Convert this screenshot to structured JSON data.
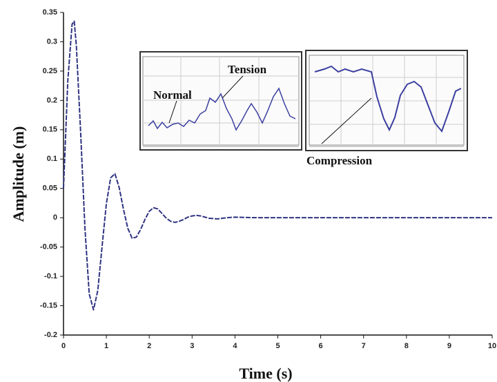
{
  "chart_data": {
    "type": "line",
    "x_label": "Time (s)",
    "y_label": "Amplitude (m)",
    "x": [
      0,
      0.1,
      0.2,
      0.25,
      0.3,
      0.4,
      0.5,
      0.6,
      0.7,
      0.8,
      0.9,
      1.0,
      1.1,
      1.2,
      1.3,
      1.4,
      1.5,
      1.6,
      1.7,
      1.8,
      1.9,
      2.0,
      2.1,
      2.2,
      2.3,
      2.4,
      2.5,
      2.6,
      2.7,
      2.8,
      2.9,
      3.0,
      3.1,
      3.2,
      3.4,
      3.6,
      3.8,
      4.0,
      4.5,
      5,
      6,
      7,
      8,
      9,
      10
    ],
    "values": [
      0.05,
      0.233,
      0.33,
      0.335,
      0.293,
      0.145,
      -0.018,
      -0.13,
      -0.157,
      -0.124,
      -0.049,
      0.024,
      0.068,
      0.075,
      0.051,
      0.014,
      -0.018,
      -0.035,
      -0.033,
      -0.02,
      -0.003,
      0.011,
      0.017,
      0.015,
      0.007,
      -0.001,
      -0.006,
      -0.008,
      -0.006,
      -0.003,
      0.001,
      0.003,
      0.004,
      0.003,
      -0.001,
      -0.002,
      0,
      0.001,
      0,
      0,
      0,
      0,
      0,
      0,
      0
    ],
    "color": "#2e3380",
    "xlim": [
      0,
      10
    ],
    "xticks": [
      0,
      1,
      2,
      3,
      4,
      5,
      6,
      7,
      8,
      9,
      10
    ],
    "ylim": [
      -0.2,
      0.35
    ],
    "yticks": [
      -0.2,
      -0.15,
      -0.1,
      -0.05,
      0,
      0.05,
      0.1,
      0.15,
      0.2,
      0.25,
      0.3,
      0.35
    ],
    "annotations": [
      "Tension",
      "Normal",
      "Compression"
    ]
  }
}
